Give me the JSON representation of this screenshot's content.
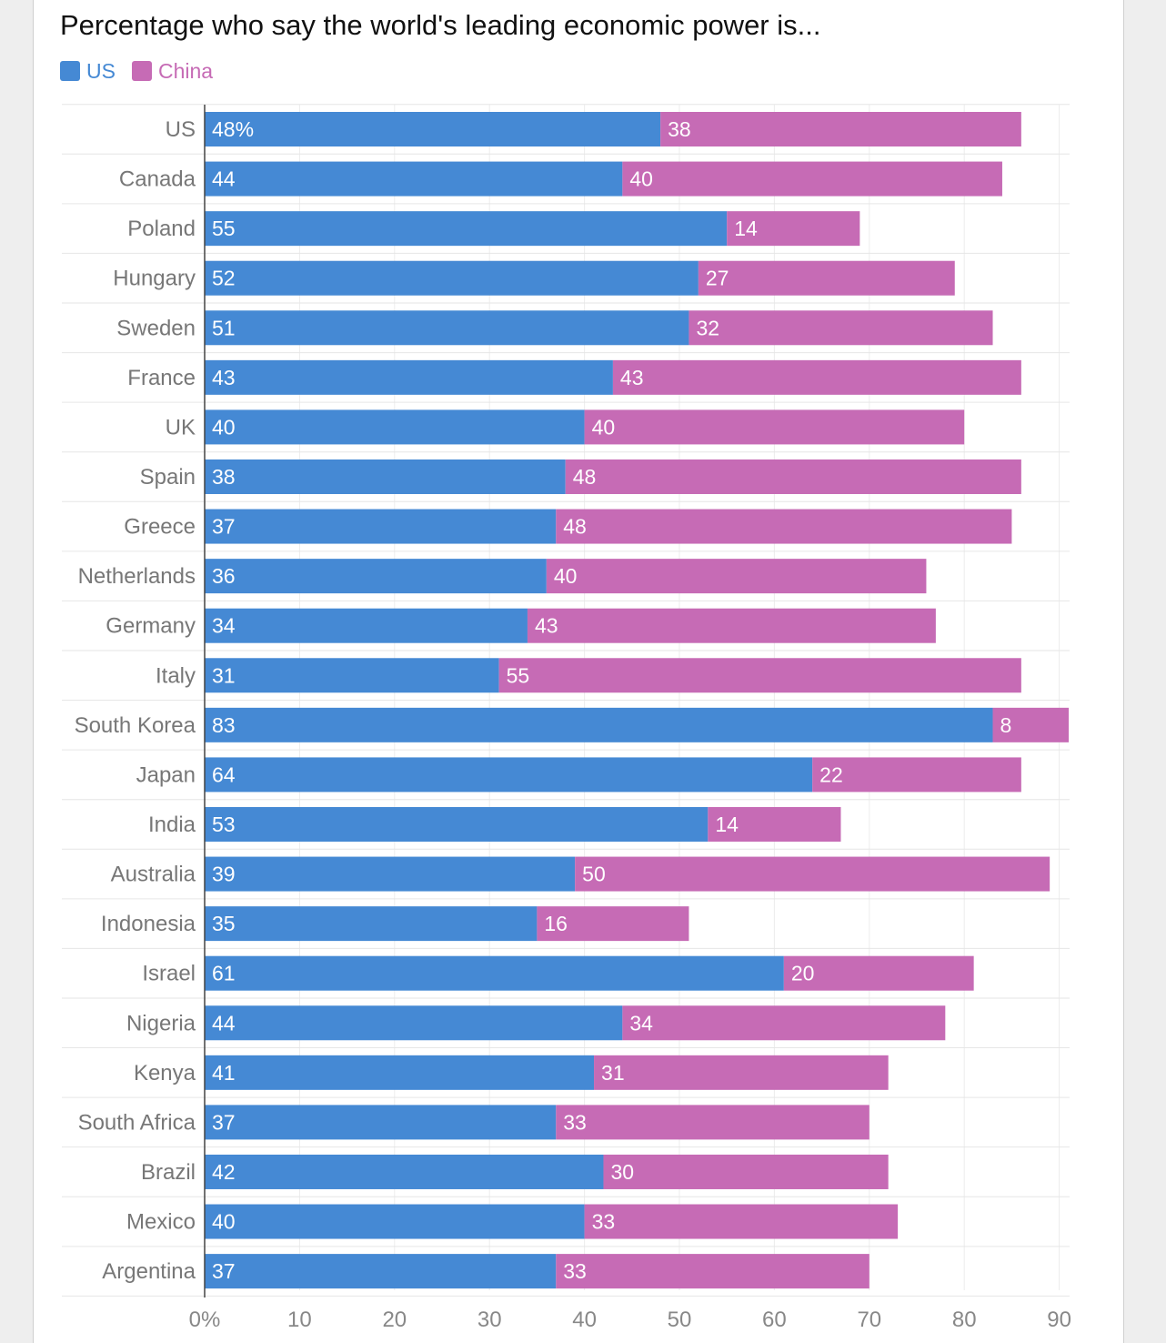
{
  "chart_data": {
    "type": "bar",
    "orientation": "horizontal",
    "stacked": true,
    "title": "Percentage who say the world's leading economic power is...",
    "categories": [
      "US",
      "Canada",
      "Poland",
      "Hungary",
      "Sweden",
      "France",
      "UK",
      "Spain",
      "Greece",
      "Netherlands",
      "Germany",
      "Italy",
      "South Korea",
      "Japan",
      "India",
      "Australia",
      "Indonesia",
      "Israel",
      "Nigeria",
      "Kenya",
      "South Africa",
      "Brazil",
      "Mexico",
      "Argentina"
    ],
    "series": [
      {
        "name": "US",
        "color": "#4589d4",
        "values": [
          48,
          44,
          55,
          52,
          51,
          43,
          40,
          38,
          37,
          36,
          34,
          31,
          83,
          64,
          53,
          39,
          35,
          61,
          44,
          41,
          37,
          42,
          40,
          37
        ]
      },
      {
        "name": "China",
        "color": "#c66bb5",
        "values": [
          38,
          40,
          14,
          27,
          32,
          43,
          40,
          48,
          48,
          40,
          43,
          55,
          8,
          22,
          14,
          50,
          16,
          20,
          34,
          31,
          33,
          30,
          33,
          33
        ]
      }
    ],
    "first_label_suffix": "%",
    "xlim": [
      0,
      91
    ],
    "xticks": [
      0,
      10,
      20,
      30,
      40,
      50,
      60,
      70,
      80,
      90
    ],
    "xtick_labels": [
      "0%",
      "10",
      "20",
      "30",
      "40",
      "50",
      "60",
      "70",
      "80",
      "90"
    ],
    "legend_position": "top-left",
    "grid": true
  }
}
